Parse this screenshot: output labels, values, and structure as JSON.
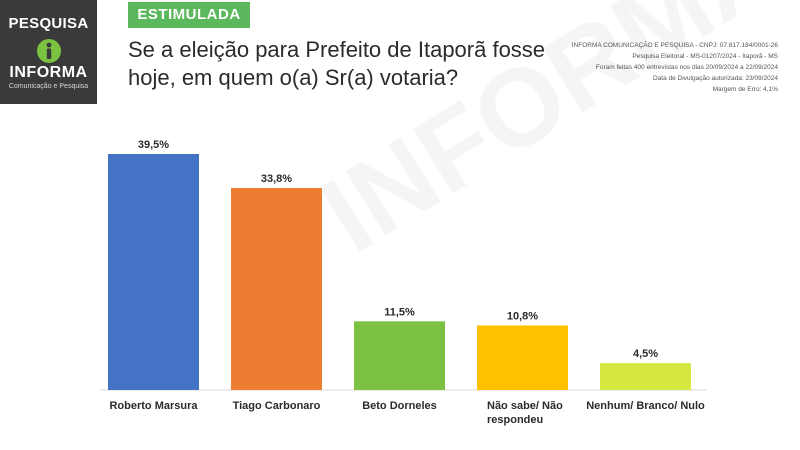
{
  "logo": {
    "top_text": "PESQUISA",
    "name": "INFORMA",
    "subtitle": "Comunicação e Pesquisa"
  },
  "tag": "ESTIMULADA",
  "question": "Se a eleição para Prefeito de Itaporã fosse hoje, em quem o(a) Sr(a) votaria?",
  "info_lines": [
    "INFORMA COMUNICAÇÃO E PESQUISA - CNPJ: 07.817.184/0001-26",
    "Pesquisa Eleitoral - MS-01207/2024 - Itaporã - MS",
    "Foram feitas 400 entrevistas nos dias 20/09/2024 a 22/09/2024",
    "Data de Divulgação autorizada: 23/09/2024",
    "Margem de Erro: 4,1%"
  ],
  "watermark": "INFORMA",
  "colors": {
    "logo_bg": "#3a3a3a",
    "tag_bg": "#5cb85c",
    "bars": [
      "#4472c4",
      "#ed7d31",
      "#7cc242",
      "#ffc000",
      "#d4e840"
    ]
  },
  "chart_data": {
    "type": "bar",
    "categories": [
      [
        "Roberto Marsura"
      ],
      [
        "Tiago Carbonaro"
      ],
      [
        "Beto Dorneles"
      ],
      [
        "Não sabe/ Não",
        "respondeu"
      ],
      [
        "Nenhum/ Branco/ Nulo"
      ]
    ],
    "values": [
      39.5,
      33.8,
      11.5,
      10.8,
      4.5
    ],
    "value_labels": [
      "39,5%",
      "33,8%",
      "11,5%",
      "10,8%",
      "4,5%"
    ],
    "unit": "%",
    "ylim": [
      0,
      39.5
    ],
    "grid": false,
    "legend": "none"
  }
}
